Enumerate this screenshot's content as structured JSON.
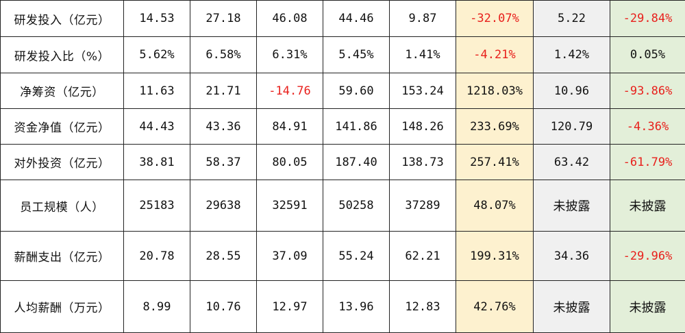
{
  "table": {
    "rows": [
      {
        "label": "研发投入（亿元）",
        "cells": [
          "14.53",
          "27.18",
          "46.08",
          "44.46",
          "9.87",
          "-32.07%",
          "5.22",
          "-29.84%"
        ],
        "negative": [
          false,
          false,
          false,
          false,
          false,
          true,
          false,
          true
        ]
      },
      {
        "label": "研发投入比（%）",
        "cells": [
          "5.62%",
          "6.58%",
          "6.31%",
          "5.45%",
          "1.41%",
          "-4.21%",
          "1.42%",
          "0.05%"
        ],
        "negative": [
          false,
          false,
          false,
          false,
          false,
          true,
          false,
          false
        ]
      },
      {
        "label": "净筹资（亿元）",
        "cells": [
          "11.63",
          "21.71",
          "-14.76",
          "59.60",
          "153.24",
          "1218.03%",
          "10.96",
          "-93.86%"
        ],
        "negative": [
          false,
          false,
          true,
          false,
          false,
          false,
          false,
          true
        ]
      },
      {
        "label": "资金净值（亿元）",
        "cells": [
          "44.43",
          "43.36",
          "84.91",
          "141.86",
          "148.26",
          "233.69%",
          "120.79",
          "-4.36%"
        ],
        "negative": [
          false,
          false,
          false,
          false,
          false,
          false,
          false,
          true
        ]
      },
      {
        "label": "对外投资（亿元）",
        "cells": [
          "38.81",
          "58.37",
          "80.05",
          "187.40",
          "138.73",
          "257.41%",
          "63.42",
          "-61.79%"
        ],
        "negative": [
          false,
          false,
          false,
          false,
          false,
          false,
          false,
          true
        ]
      },
      {
        "label": "员工规模（人）",
        "cells": [
          "25183",
          "29638",
          "32591",
          "50258",
          "37289",
          "48.07%",
          "未披露",
          "未披露"
        ],
        "negative": [
          false,
          false,
          false,
          false,
          false,
          false,
          false,
          false
        ]
      },
      {
        "label": "薪酬支出（亿元）",
        "cells": [
          "20.78",
          "28.55",
          "37.09",
          "55.24",
          "62.21",
          "199.31%",
          "34.36",
          "-29.96%"
        ],
        "negative": [
          false,
          false,
          false,
          false,
          false,
          false,
          false,
          true
        ]
      },
      {
        "label": "人均薪酬（万元）",
        "cells": [
          "8.99",
          "10.76",
          "12.97",
          "13.96",
          "12.83",
          "42.76%",
          "未披露",
          "未披露"
        ],
        "negative": [
          false,
          false,
          false,
          false,
          false,
          false,
          false,
          false
        ]
      }
    ]
  },
  "colors": {
    "negative_text": "#e8201c",
    "highlight_col_f": "#fdf1cf",
    "highlight_col_g": "#f0f0f0",
    "highlight_col_h": "#e3efd9",
    "border": "#222222"
  }
}
